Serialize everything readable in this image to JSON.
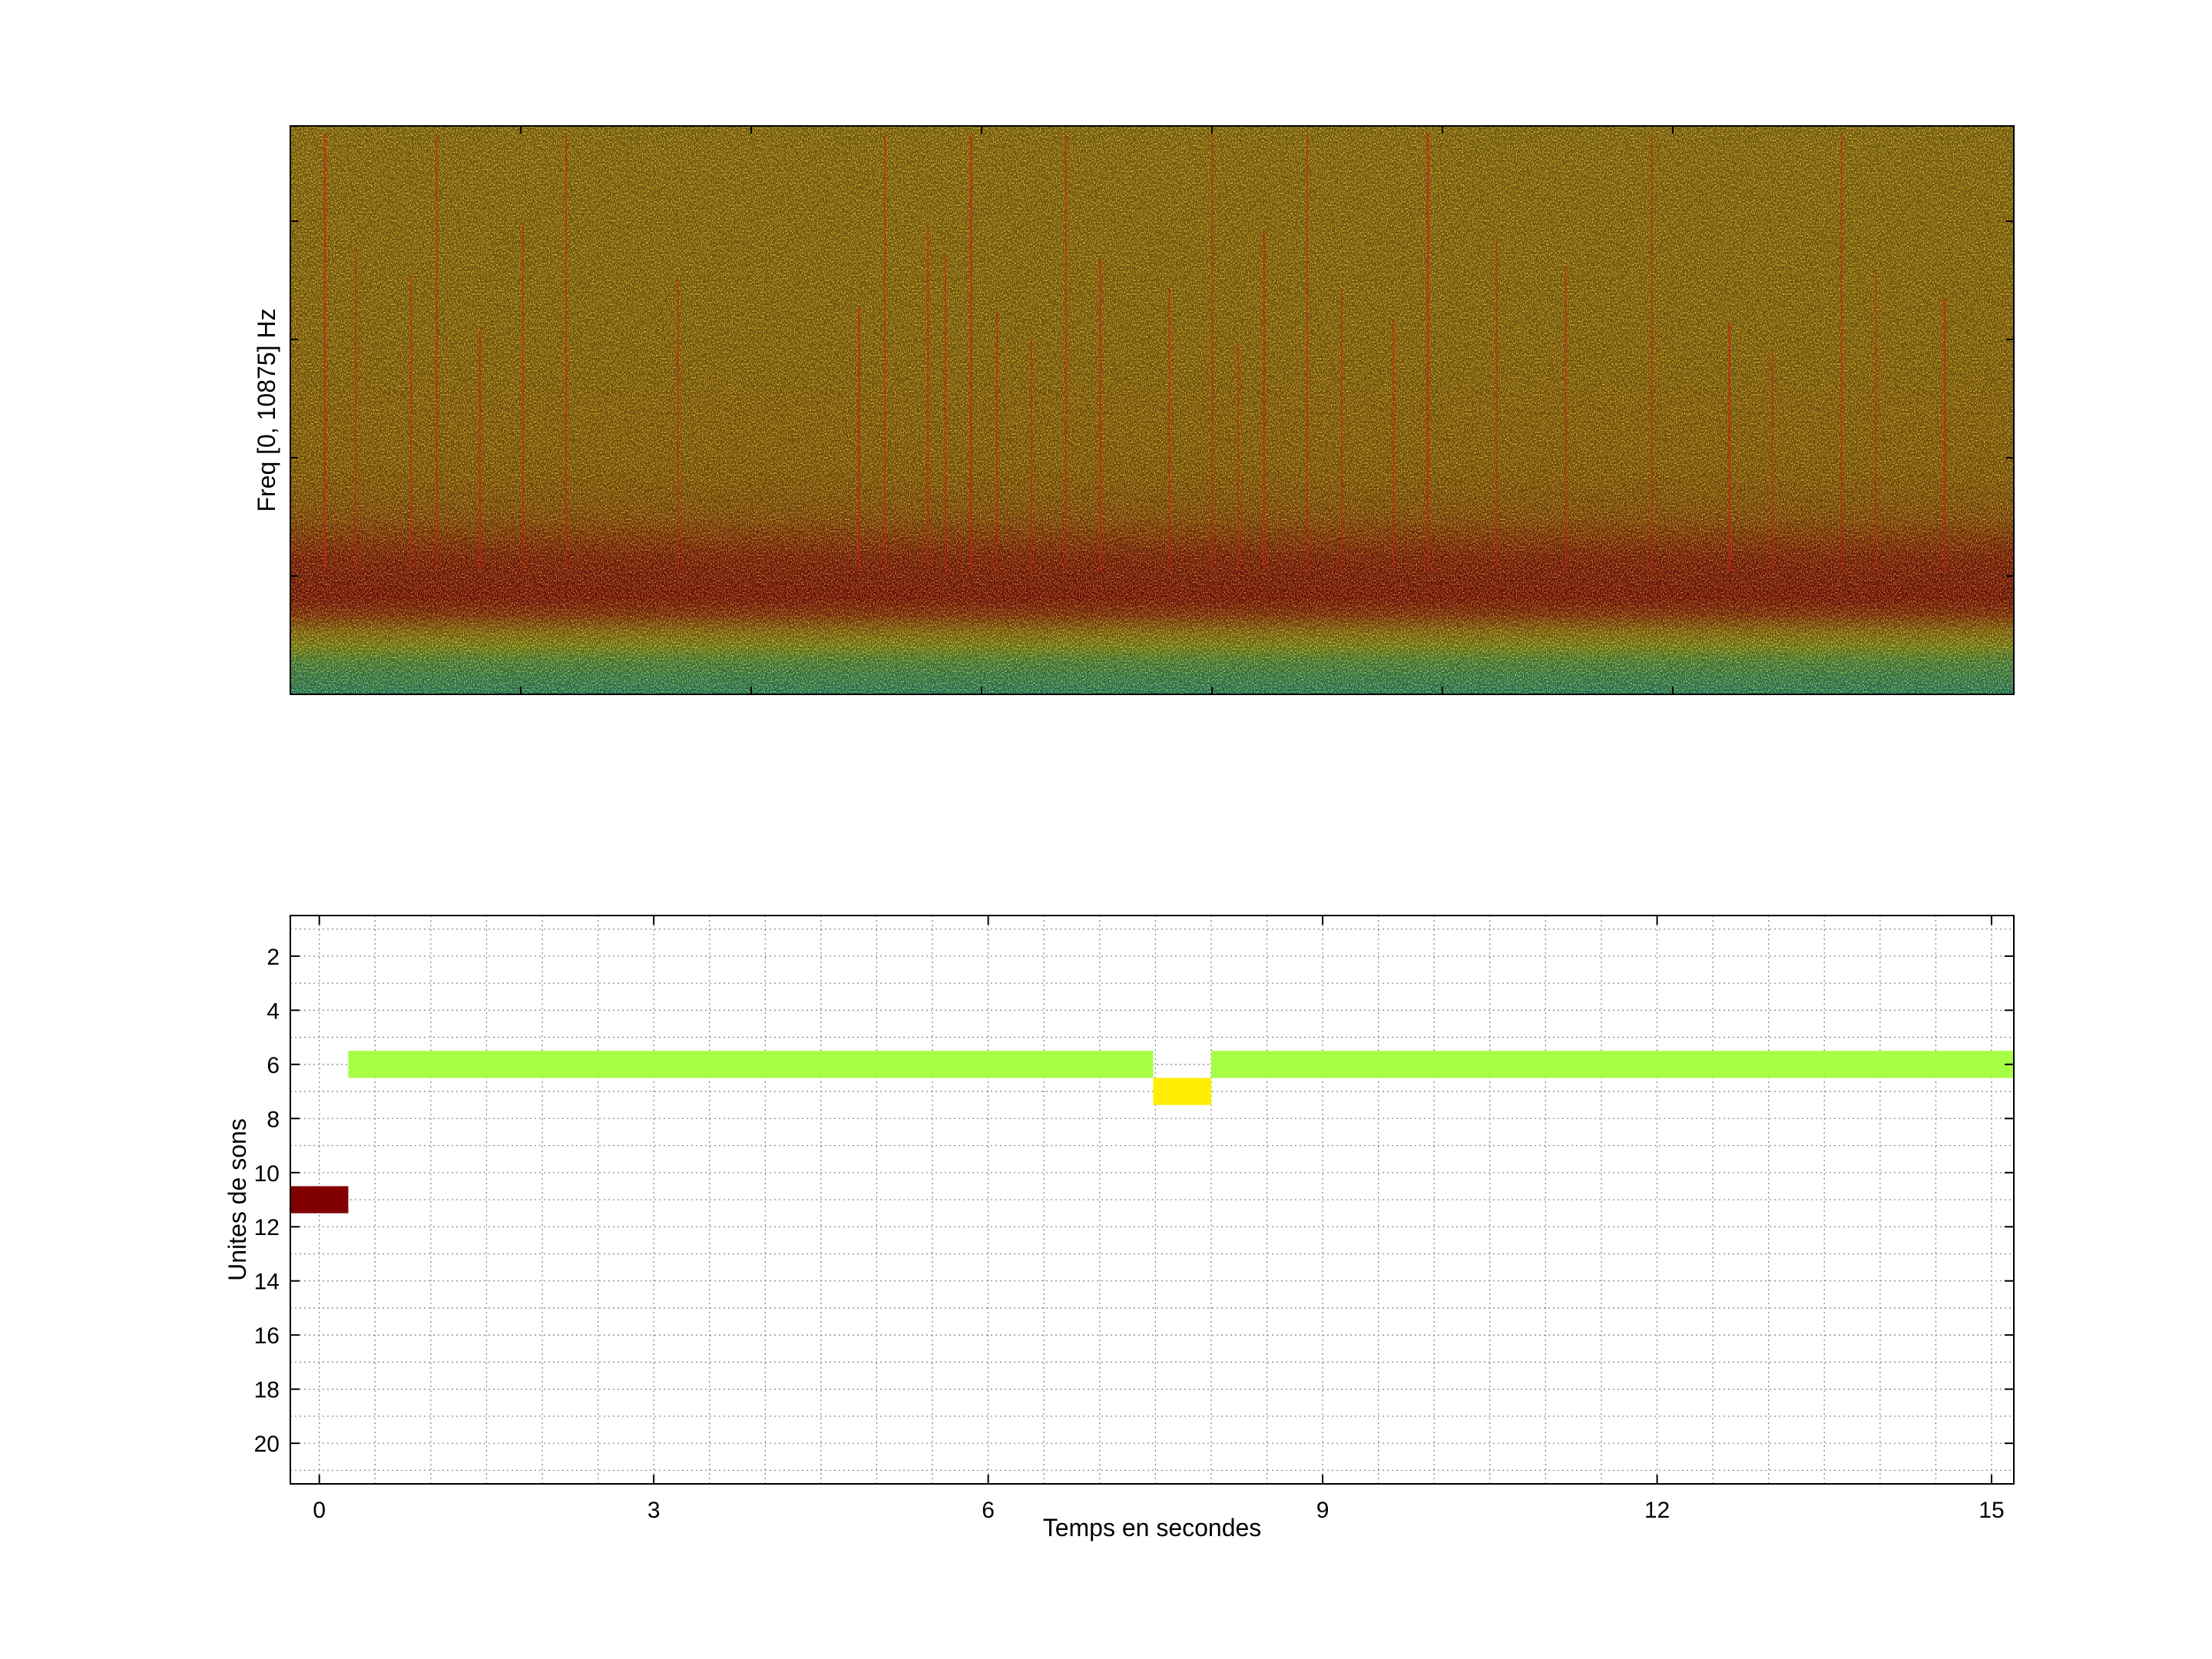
{
  "chart_data": [
    {
      "type": "heatmap",
      "title": "",
      "xlabel": "",
      "ylabel": "Freq [0, 10875] Hz",
      "xticks": [],
      "yticks": [],
      "grid": false,
      "legend": "none",
      "colormap": "jet",
      "description_bands": [
        {
          "freq_fraction_range": [
            0.0,
            0.08
          ],
          "intensity": "low",
          "color": "#4df0b0"
        },
        {
          "freq_fraction_range": [
            0.08,
            0.13
          ],
          "intensity": "medium",
          "color": "#f5e630"
        },
        {
          "freq_fraction_range": [
            0.13,
            0.35
          ],
          "intensity": "high",
          "color": "#e8281a"
        },
        {
          "freq_fraction_range": [
            0.35,
            1.0
          ],
          "intensity": "medium-high",
          "color": "#f5a21a"
        }
      ]
    },
    {
      "type": "heatmap",
      "title": "",
      "xlabel": "Temps en secondes",
      "ylabel": "Unites de sons",
      "xlim": [
        -0.26,
        15.2
      ],
      "ylim": [
        21.5,
        0.5
      ],
      "xticks": [
        "0",
        "3",
        "6",
        "9",
        "12",
        "15"
      ],
      "yticks": [
        "2",
        "4",
        "6",
        "8",
        "10",
        "12",
        "14",
        "16",
        "18",
        "20"
      ],
      "grid": true,
      "legend": "none",
      "segments": [
        {
          "unit": 11,
          "x_start": -0.26,
          "x_end": 0.26,
          "color": "#800000"
        },
        {
          "unit": 6,
          "x_start": 0.26,
          "x_end": 7.48,
          "color": "#a6ff44"
        },
        {
          "unit": 7,
          "x_start": 7.48,
          "x_end": 8.0,
          "color": "#ffee00"
        },
        {
          "unit": 6,
          "x_start": 8.0,
          "x_end": 15.2,
          "color": "#a6ff44"
        }
      ]
    }
  ]
}
